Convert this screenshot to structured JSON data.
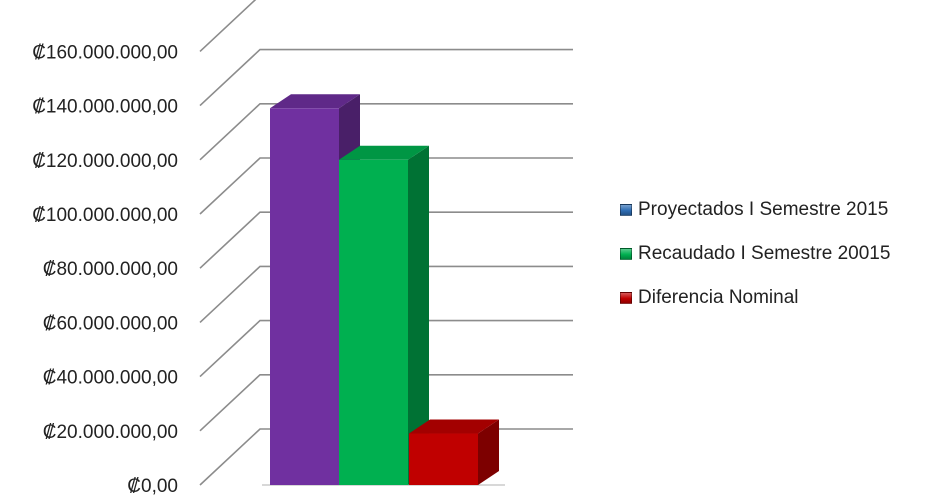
{
  "chart_data": {
    "type": "bar",
    "style": "3d-clustered-column",
    "currency_symbol": "₡",
    "yticks": [
      "₡0,00",
      "₡20.000.000,00",
      "₡40.000.000,00",
      "₡60.000.000,00",
      "₡80.000.000,00",
      "₡100.000.000,00",
      "₡120.000.000,00",
      "₡140.000.000,00",
      "₡160.000.000,00"
    ],
    "ylim": [
      0,
      160000000
    ],
    "grid": true,
    "legend_position": "right",
    "series": [
      {
        "name": "Proyectados I Semestre 2015",
        "value": 139000000,
        "color": "#7030A0",
        "legend_color": "#2E6DB4"
      },
      {
        "name": "Recaudado I Semestre 20015",
        "value": 120000000,
        "color": "#00B050",
        "legend_color": "#00B050"
      },
      {
        "name": "Diferencia Nominal",
        "value": 19000000,
        "color": "#C00000",
        "legend_color": "#C00000"
      }
    ]
  }
}
